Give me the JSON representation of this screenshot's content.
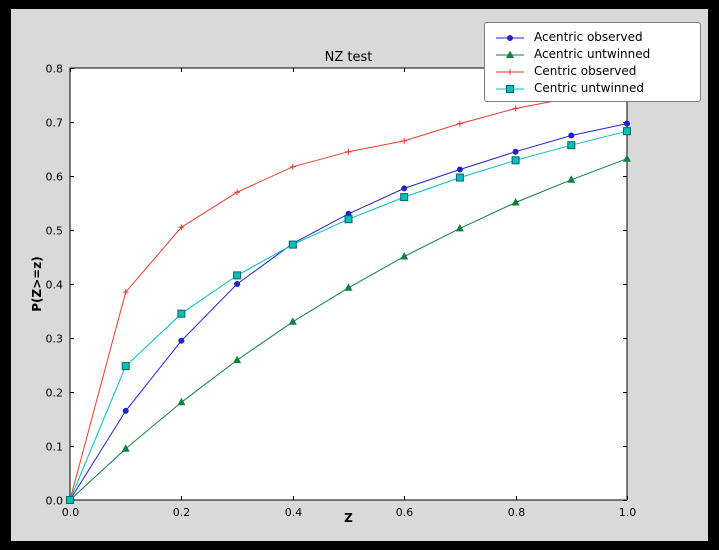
{
  "colors": {
    "frame": "#000000",
    "figure_bg": "#d9d9d9",
    "plot_bg": "#ffffff",
    "axis": "#000000"
  },
  "chart_data": {
    "type": "line",
    "title": "NZ test",
    "xlabel": "Z",
    "ylabel": "P(Z>=z)",
    "xlim": [
      0.0,
      1.0
    ],
    "ylim": [
      0.0,
      0.8
    ],
    "xticks": [
      0.0,
      0.2,
      0.4,
      0.6,
      0.8,
      1.0
    ],
    "yticks": [
      0.0,
      0.1,
      0.2,
      0.3,
      0.4,
      0.5,
      0.6,
      0.7,
      0.8
    ],
    "grid": false,
    "legend_position": "upper right",
    "x": [
      0.0,
      0.1,
      0.2,
      0.3,
      0.4,
      0.5,
      0.6,
      0.7,
      0.8,
      0.9,
      1.0
    ],
    "series": [
      {
        "name": "Acentric observed",
        "color": "#2222cc",
        "marker": "circle",
        "values": [
          0.0,
          0.165,
          0.295,
          0.4,
          0.475,
          0.53,
          0.577,
          0.612,
          0.645,
          0.675,
          0.697
        ]
      },
      {
        "name": "Acentric untwinned",
        "color": "#0f8040",
        "marker": "triangle",
        "values": [
          0.0,
          0.095,
          0.181,
          0.259,
          0.33,
          0.393,
          0.451,
          0.503,
          0.551,
          0.593,
          0.632
        ]
      },
      {
        "name": "Centric observed",
        "color": "#e93a28",
        "marker": "plus",
        "values": [
          0.0,
          0.385,
          0.505,
          0.57,
          0.617,
          0.645,
          0.665,
          0.697,
          0.725,
          0.745,
          0.759
        ]
      },
      {
        "name": "Centric untwinned",
        "color": "#00bfbf",
        "marker": "square",
        "marker_edge": "#006666",
        "values": [
          0.0,
          0.248,
          0.345,
          0.416,
          0.473,
          0.52,
          0.561,
          0.597,
          0.629,
          0.657,
          0.683
        ]
      }
    ]
  }
}
